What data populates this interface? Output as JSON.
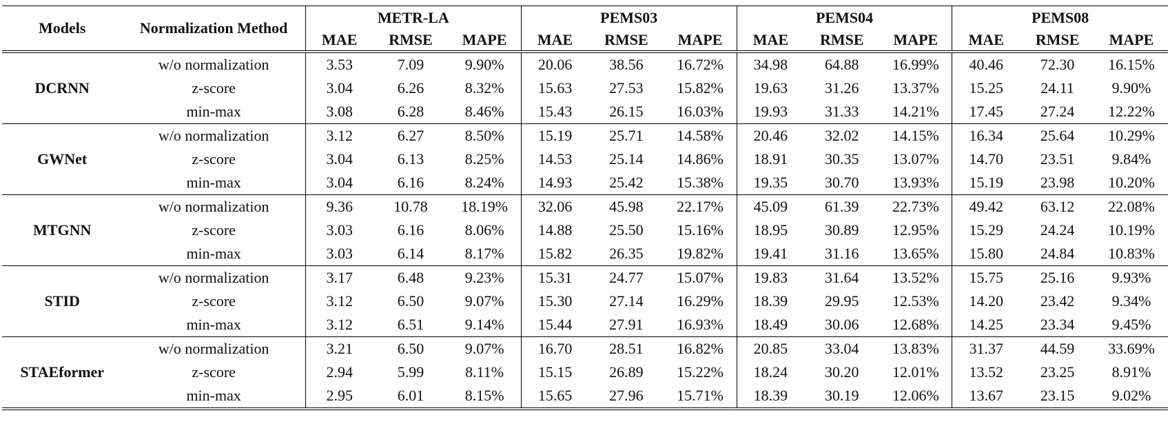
{
  "header": {
    "models_label": "Models",
    "method_label": "Normalization Method",
    "datasets": [
      "METR-LA",
      "PEMS03",
      "PEMS04",
      "PEMS08"
    ],
    "metrics": [
      "MAE",
      "RMSE",
      "MAPE"
    ]
  },
  "groups": [
    {
      "model": "DCRNN",
      "rows": [
        {
          "method": "w/o normalization",
          "values": [
            "3.53",
            "7.09",
            "9.90%",
            "20.06",
            "38.56",
            "16.72%",
            "34.98",
            "64.88",
            "16.99%",
            "40.46",
            "72.30",
            "16.15%"
          ],
          "bold": [
            false,
            false,
            false,
            false,
            false,
            false,
            false,
            false,
            false,
            false,
            false,
            false
          ]
        },
        {
          "method": "z-score",
          "values": [
            "3.04",
            "6.26",
            "8.32%",
            "15.63",
            "27.53",
            "15.82%",
            "19.63",
            "31.26",
            "13.37%",
            "15.25",
            "24.11",
            "9.90%"
          ],
          "bold": [
            true,
            true,
            true,
            false,
            false,
            true,
            true,
            true,
            true,
            true,
            true,
            true
          ]
        },
        {
          "method": "min-max",
          "values": [
            "3.08",
            "6.28",
            "8.46%",
            "15.43",
            "26.15",
            "16.03%",
            "19.93",
            "31.33",
            "14.21%",
            "17.45",
            "27.24",
            "12.22%"
          ],
          "bold": [
            false,
            false,
            false,
            true,
            true,
            false,
            false,
            false,
            false,
            false,
            false,
            false
          ]
        }
      ]
    },
    {
      "model": "GWNet",
      "rows": [
        {
          "method": "w/o normalization",
          "values": [
            "3.12",
            "6.27",
            "8.50%",
            "15.19",
            "25.71",
            "14.58%",
            "20.46",
            "32.02",
            "14.15%",
            "16.34",
            "25.64",
            "10.29%"
          ],
          "bold": [
            false,
            false,
            false,
            false,
            false,
            true,
            false,
            false,
            false,
            false,
            false,
            false
          ]
        },
        {
          "method": "z-score",
          "values": [
            "3.04",
            "6.13",
            "8.25%",
            "14.53",
            "25.14",
            "14.86%",
            "18.91",
            "30.35",
            "13.07%",
            "14.70",
            "23.51",
            "9.84%"
          ],
          "bold": [
            true,
            true,
            false,
            true,
            true,
            false,
            true,
            true,
            true,
            true,
            true,
            true
          ]
        },
        {
          "method": "min-max",
          "values": [
            "3.04",
            "6.16",
            "8.24%",
            "14.93",
            "25.42",
            "15.38%",
            "19.35",
            "30.70",
            "13.93%",
            "15.19",
            "23.98",
            "10.20%"
          ],
          "bold": [
            true,
            false,
            true,
            false,
            false,
            false,
            false,
            false,
            false,
            false,
            false,
            false
          ]
        }
      ]
    },
    {
      "model": "MTGNN",
      "rows": [
        {
          "method": "w/o normalization",
          "values": [
            "9.36",
            "10.78",
            "18.19%",
            "32.06",
            "45.98",
            "22.17%",
            "45.09",
            "61.39",
            "22.73%",
            "49.42",
            "63.12",
            "22.08%"
          ],
          "bold": [
            false,
            false,
            false,
            false,
            false,
            false,
            false,
            false,
            false,
            false,
            false,
            false
          ]
        },
        {
          "method": "z-score",
          "values": [
            "3.03",
            "6.16",
            "8.06%",
            "14.88",
            "25.50",
            "15.16%",
            "18.95",
            "30.89",
            "12.95%",
            "15.29",
            "24.24",
            "10.19%"
          ],
          "bold": [
            true,
            false,
            true,
            true,
            true,
            true,
            true,
            true,
            true,
            true,
            true,
            true
          ]
        },
        {
          "method": "min-max",
          "values": [
            "3.03",
            "6.14",
            "8.17%",
            "15.82",
            "26.35",
            "19.82%",
            "19.41",
            "31.16",
            "13.65%",
            "15.80",
            "24.84",
            "10.83%"
          ],
          "bold": [
            true,
            true,
            false,
            false,
            false,
            false,
            false,
            false,
            false,
            false,
            false,
            false
          ]
        }
      ]
    },
    {
      "model": "STID",
      "rows": [
        {
          "method": "w/o normalization",
          "values": [
            "3.17",
            "6.48",
            "9.23%",
            "15.31",
            "24.77",
            "15.07%",
            "19.83",
            "31.64",
            "13.52%",
            "15.75",
            "25.16",
            "9.93%"
          ],
          "bold": [
            false,
            true,
            false,
            false,
            true,
            true,
            false,
            false,
            false,
            false,
            false,
            false
          ]
        },
        {
          "method": "z-score",
          "values": [
            "3.12",
            "6.50",
            "9.07%",
            "15.30",
            "27.14",
            "16.29%",
            "18.39",
            "29.95",
            "12.53%",
            "14.20",
            "23.42",
            "9.34%"
          ],
          "bold": [
            true,
            false,
            true,
            true,
            false,
            false,
            true,
            true,
            true,
            true,
            false,
            true
          ]
        },
        {
          "method": "min-max",
          "values": [
            "3.12",
            "6.51",
            "9.14%",
            "15.44",
            "27.91",
            "16.93%",
            "18.49",
            "30.06",
            "12.68%",
            "14.25",
            "23.34",
            "9.45%"
          ],
          "bold": [
            true,
            false,
            false,
            false,
            false,
            false,
            false,
            false,
            false,
            false,
            true,
            false
          ]
        }
      ]
    },
    {
      "model": "STAEformer",
      "rows": [
        {
          "method": "w/o normalization",
          "values": [
            "3.21",
            "6.50",
            "9.07%",
            "16.70",
            "28.51",
            "16.82%",
            "20.85",
            "33.04",
            "13.83%",
            "31.37",
            "44.59",
            "33.69%"
          ],
          "bold": [
            false,
            false,
            false,
            false,
            false,
            false,
            false,
            false,
            false,
            false,
            false,
            false
          ]
        },
        {
          "method": "z-score",
          "values": [
            "2.94",
            "5.99",
            "8.11%",
            "15.15",
            "26.89",
            "15.22%",
            "18.24",
            "30.20",
            "12.01%",
            "13.52",
            "23.25",
            "8.91%"
          ],
          "bold": [
            true,
            true,
            true,
            true,
            true,
            true,
            true,
            false,
            true,
            true,
            false,
            true
          ]
        },
        {
          "method": "min-max",
          "values": [
            "2.95",
            "6.01",
            "8.15%",
            "15.65",
            "27.96",
            "15.71%",
            "18.39",
            "30.19",
            "12.06%",
            "13.67",
            "23.15",
            "9.02%"
          ],
          "bold": [
            false,
            false,
            false,
            false,
            false,
            false,
            false,
            true,
            false,
            false,
            true,
            false
          ]
        }
      ]
    }
  ]
}
